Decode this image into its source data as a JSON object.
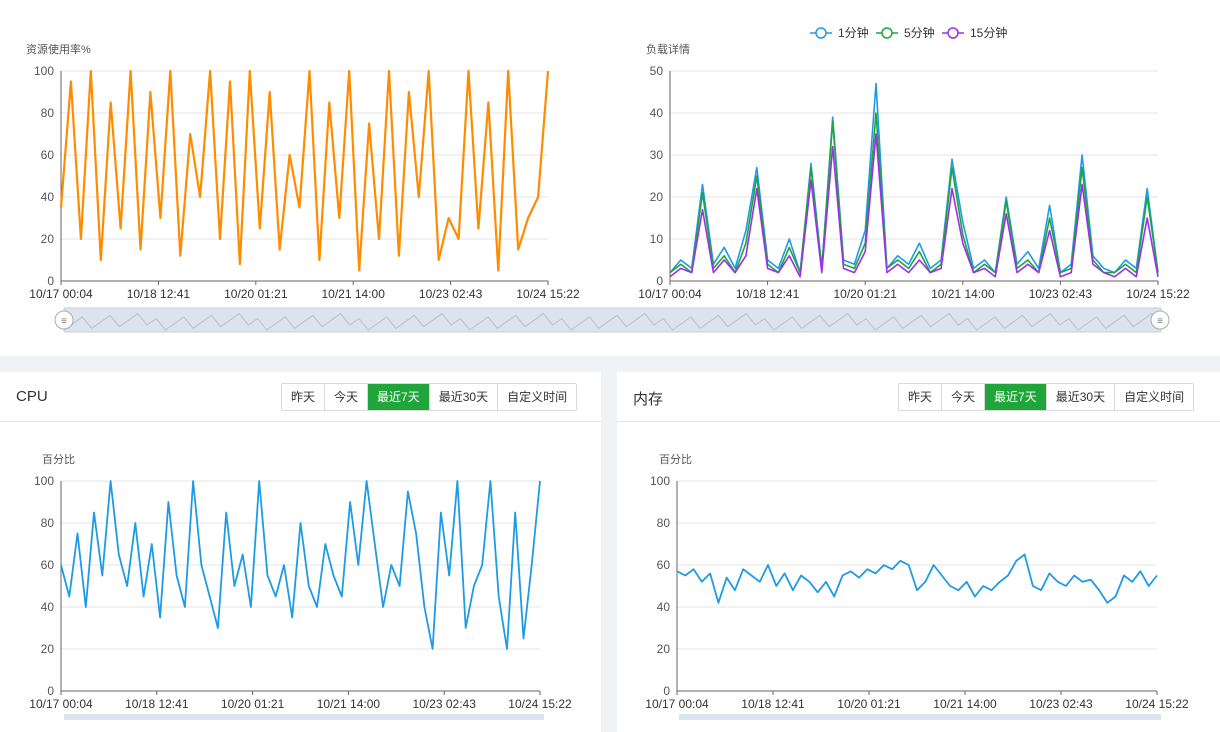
{
  "xaxis_labels": [
    "10/17 00:04",
    "10/18 12:41",
    "10/20 01:21",
    "10/21 14:00",
    "10/23 02:43",
    "10/24 15:22"
  ],
  "colors": {
    "orange": "#ff8c00",
    "blue": "#1e9be6",
    "green": "#20a53a",
    "purple": "#9b30e8",
    "accent": "#20a53a"
  },
  "range_buttons": [
    "昨天",
    "今天",
    "最近7天",
    "最近30天",
    "自定义时间"
  ],
  "active_range": "最近7天",
  "cpu_card": {
    "title": "CPU"
  },
  "mem_card": {
    "title": "内存"
  },
  "chart_data": [
    {
      "type": "line",
      "name": "resource-usage",
      "ylabel": "资源使用率%",
      "ylim": [
        0,
        100
      ],
      "yticks": [
        0,
        20,
        40,
        60,
        80,
        100
      ],
      "grid": true,
      "x_start": "10/17 00:04",
      "x_end": "10/24 15:22",
      "series": [
        {
          "color": "#ff8c00",
          "values": [
            35,
            95,
            20,
            100,
            10,
            85,
            25,
            100,
            15,
            90,
            30,
            100,
            12,
            70,
            40,
            100,
            20,
            95,
            8,
            100,
            25,
            90,
            15,
            60,
            35,
            100,
            10,
            85,
            30,
            100,
            5,
            75,
            20,
            100,
            12,
            90,
            40,
            100,
            10,
            30,
            20,
            100,
            25,
            85,
            5,
            100,
            15,
            30,
            40,
            100
          ]
        }
      ]
    },
    {
      "type": "line",
      "name": "load-detail",
      "ylabel": "负载详情",
      "ylim": [
        0,
        50
      ],
      "yticks": [
        0,
        10,
        20,
        30,
        40,
        50
      ],
      "grid": true,
      "x_start": "10/17 00:04",
      "x_end": "10/24 15:22",
      "legend": {
        "placement": "top-center",
        "entries": [
          "1分钟",
          "5分钟",
          "15分钟"
        ]
      },
      "series": [
        {
          "name": "1分钟",
          "color": "#1e9be6",
          "values": [
            2,
            5,
            3,
            23,
            4,
            8,
            3,
            12,
            27,
            5,
            3,
            10,
            2,
            28,
            3,
            39,
            5,
            4,
            12,
            47,
            3,
            6,
            4,
            9,
            3,
            5,
            29,
            14,
            3,
            5,
            2,
            20,
            4,
            7,
            3,
            18,
            2,
            4,
            30,
            6,
            3,
            2,
            5,
            3,
            22,
            2
          ]
        },
        {
          "name": "5分钟",
          "color": "#20a53a",
          "values": [
            2,
            4,
            2,
            21,
            3,
            6,
            2,
            9,
            25,
            4,
            2,
            8,
            2,
            27,
            3,
            38,
            4,
            3,
            9,
            40,
            3,
            5,
            3,
            7,
            2,
            4,
            27,
            11,
            2,
            4,
            2,
            19,
            3,
            5,
            2,
            15,
            2,
            3,
            27,
            5,
            2,
            2,
            4,
            2,
            20,
            2
          ]
        },
        {
          "name": "15分钟",
          "color": "#9b30e8",
          "values": [
            1,
            3,
            2,
            17,
            2,
            5,
            2,
            6,
            22,
            3,
            2,
            6,
            1,
            24,
            2,
            32,
            3,
            2,
            7,
            35,
            2,
            4,
            2,
            5,
            2,
            3,
            22,
            9,
            2,
            3,
            1,
            16,
            2,
            4,
            2,
            12,
            1,
            2,
            23,
            4,
            2,
            1,
            3,
            1,
            15,
            1
          ]
        }
      ]
    },
    {
      "type": "line",
      "name": "cpu",
      "ylabel": "百分比",
      "ylim": [
        0,
        100
      ],
      "yticks": [
        0,
        20,
        40,
        60,
        80,
        100
      ],
      "grid": true,
      "x_start": "10/17 00:04",
      "x_end": "10/24 15:22",
      "series": [
        {
          "color": "#1e9be6",
          "values": [
            60,
            45,
            75,
            40,
            85,
            55,
            100,
            65,
            50,
            80,
            45,
            70,
            35,
            90,
            55,
            40,
            100,
            60,
            45,
            30,
            85,
            50,
            65,
            40,
            100,
            55,
            45,
            60,
            35,
            80,
            50,
            40,
            70,
            55,
            45,
            90,
            60,
            100,
            70,
            40,
            60,
            50,
            95,
            75,
            40,
            20,
            85,
            55,
            100,
            30,
            50,
            60,
            100,
            45,
            20,
            85,
            25,
            60,
            100
          ]
        }
      ]
    },
    {
      "type": "line",
      "name": "memory",
      "ylabel": "百分比",
      "ylim": [
        0,
        100
      ],
      "yticks": [
        0,
        20,
        40,
        60,
        80,
        100
      ],
      "grid": true,
      "x_start": "10/17 00:04",
      "x_end": "10/24 15:22",
      "series": [
        {
          "color": "#1e9be6",
          "values": [
            57,
            55,
            58,
            52,
            56,
            42,
            54,
            48,
            58,
            55,
            52,
            60,
            50,
            56,
            48,
            55,
            52,
            47,
            52,
            45,
            55,
            57,
            54,
            58,
            56,
            60,
            58,
            62,
            60,
            48,
            52,
            60,
            55,
            50,
            48,
            52,
            45,
            50,
            48,
            52,
            55,
            62,
            65,
            50,
            48,
            56,
            52,
            50,
            55,
            52,
            53,
            48,
            42,
            45,
            55,
            52,
            57,
            50,
            55
          ]
        }
      ]
    }
  ]
}
